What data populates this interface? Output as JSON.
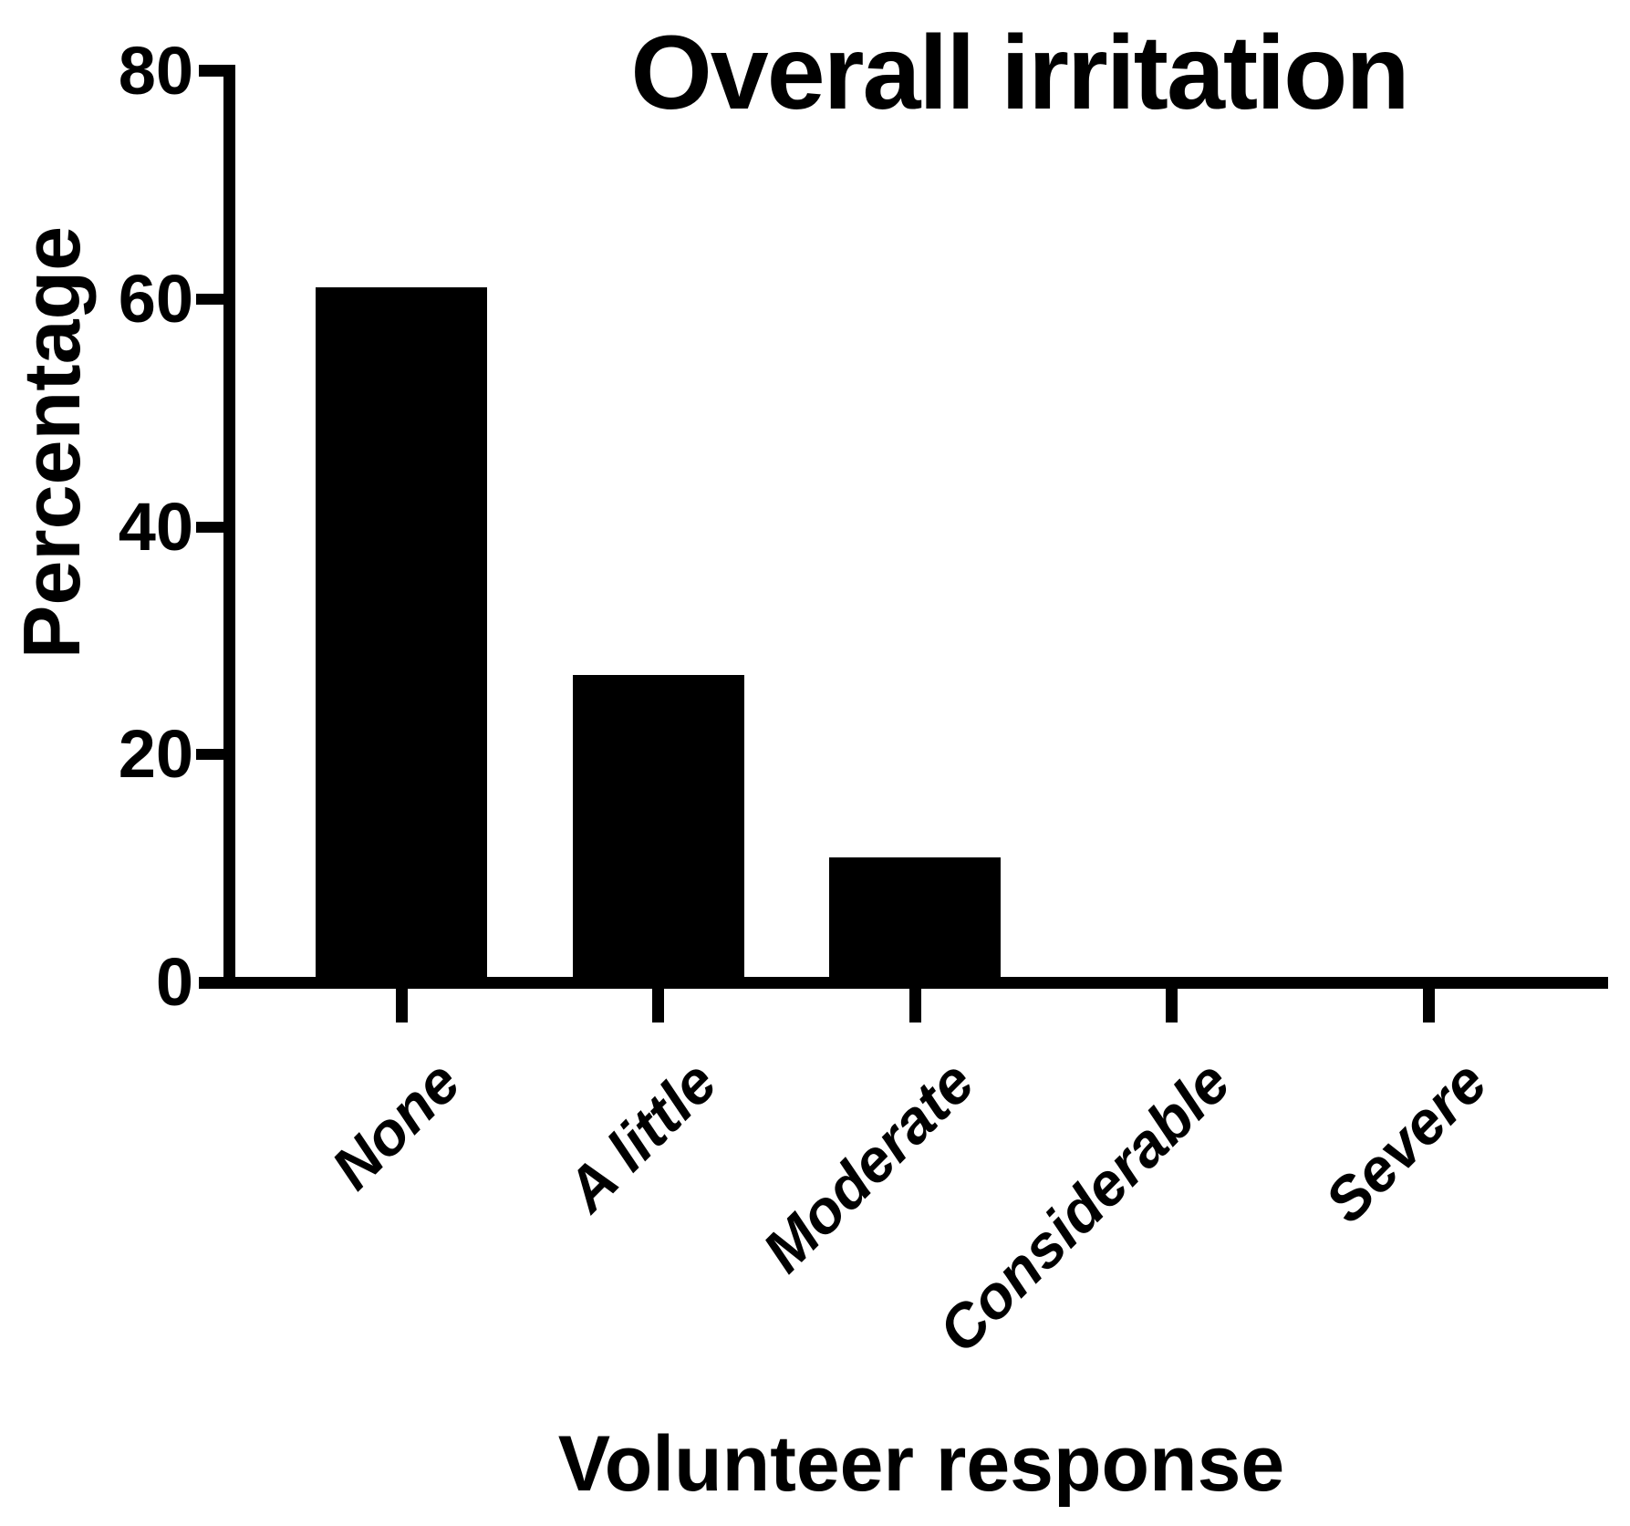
{
  "figure": {
    "title": "Overall irritation",
    "ylabel": "Percentage",
    "xlabel": "Volunteer response"
  },
  "chart_data": {
    "type": "bar",
    "title": "Overall irritation",
    "xlabel": "Volunteer response",
    "ylabel": "Percentage",
    "categories": [
      "None",
      "A little",
      "Moderate",
      "Considerable",
      "Severe"
    ],
    "values": [
      61,
      27,
      11,
      0,
      0
    ],
    "units": "percent",
    "ylim": [
      0,
      80
    ],
    "yticks": [
      0,
      20,
      40,
      60,
      80
    ],
    "bar_color": "#000000",
    "axis_color": "#000000",
    "background_color": "#ffffff",
    "grid": false,
    "legend": false,
    "x_tick_label_rotation_deg": 45,
    "x_tick_label_style": "bold italic"
  }
}
